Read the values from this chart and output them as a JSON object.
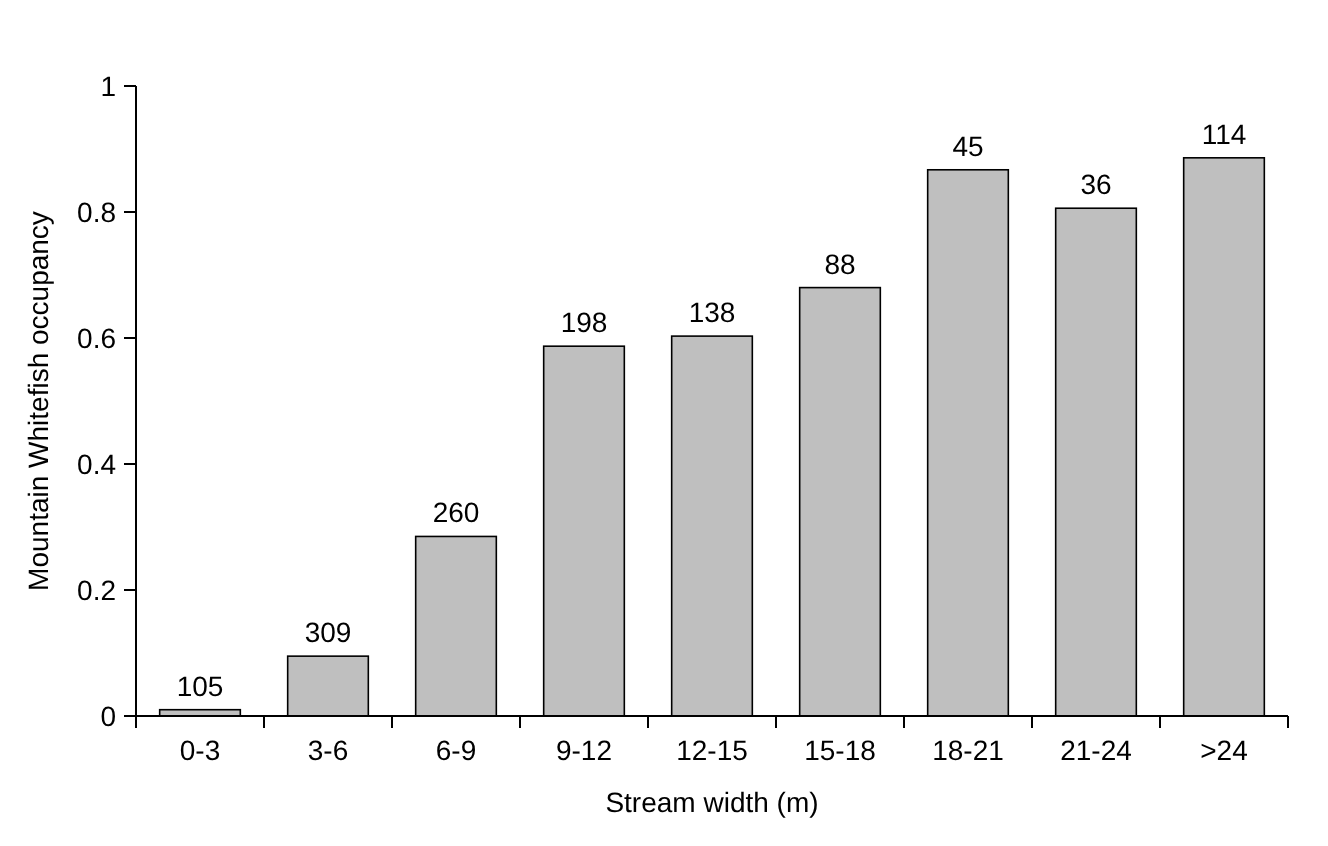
{
  "chart_data": {
    "type": "bar",
    "xlabel": "Stream width (m)",
    "ylabel": "Mountain Whitefish occupancy",
    "categories": [
      "0-3",
      "3-6",
      "6-9",
      "9-12",
      "12-15",
      "15-18",
      "18-21",
      "21-24",
      ">24"
    ],
    "values": [
      0.01,
      0.095,
      0.285,
      0.587,
      0.603,
      0.68,
      0.867,
      0.806,
      0.886
    ],
    "annotations": [
      {
        "text": "105",
        "x": "0-3",
        "y": 0.01
      },
      {
        "text": "309",
        "x": "3-6",
        "y": 0.095
      },
      {
        "text": "260",
        "x": "6-9",
        "y": 0.285
      },
      {
        "text": "198",
        "x": "9-12",
        "y": 0.587
      },
      {
        "text": "138",
        "x": "12-15",
        "y": 0.603
      },
      {
        "text": "88",
        "x": "15-18",
        "y": 0.68
      },
      {
        "text": "45",
        "x": "18-21",
        "y": 0.867
      },
      {
        "text": "36",
        "x": "21-24",
        "y": 0.806
      },
      {
        "text": "114",
        "x": ">24",
        "y": 0.886
      }
    ],
    "color": "#bfbfbf",
    "ylim": [
      0,
      1
    ],
    "yticks": [
      0,
      0.2,
      0.4,
      0.6,
      0.8,
      1
    ],
    "grid": false
  }
}
